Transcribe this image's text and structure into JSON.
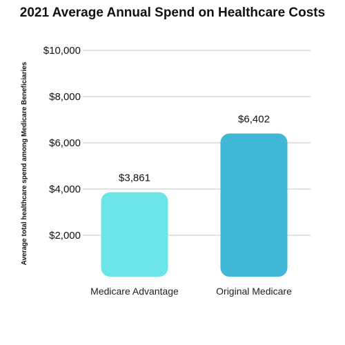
{
  "chart_data": {
    "type": "bar",
    "title": "2021 Average Annual Spend on Healthcare Costs",
    "xlabel": "",
    "ylabel": "Average total healthcare spend among Medicare Beneficiaries",
    "categories": [
      "Medicare Advantage",
      "Original Medicare"
    ],
    "values": [
      3861,
      6402
    ],
    "value_labels": [
      "$3,861",
      "$6,402"
    ],
    "bar_colors": [
      "#6ce5e8",
      "#41b8d5"
    ],
    "ylim": [
      0,
      10000
    ],
    "yticks": [
      2000,
      4000,
      6000,
      8000,
      10000
    ],
    "ytick_labels": [
      "$2,000",
      "$4,000",
      "$6,000",
      "$8,000",
      "$10,000"
    ],
    "grid": true,
    "legend": "none"
  }
}
